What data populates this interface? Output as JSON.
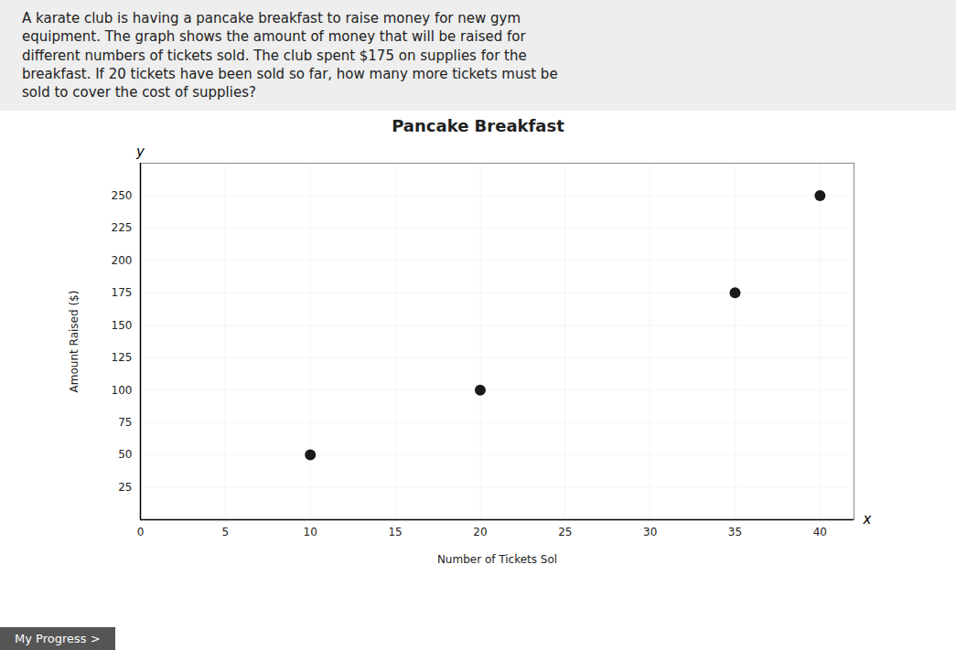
{
  "chart_data": {
    "type": "scatter",
    "title": "Pancake Breakfast",
    "xlabel": "Number of Tickets Sol",
    "ylabel": "Amount Raised ($)",
    "x": [
      10,
      20,
      35,
      40
    ],
    "values": [
      50,
      100,
      175,
      250
    ],
    "color": "#1a1a1a",
    "xlim": [
      0,
      42
    ],
    "ylim": [
      0,
      275
    ],
    "xticks": [
      0,
      5,
      10,
      15,
      20,
      25,
      30,
      35,
      40
    ],
    "yticks": [
      25,
      50,
      75,
      100,
      125,
      150,
      175,
      200,
      225,
      250
    ],
    "grid": true,
    "problem_text": [
      "A karate club is having a pancake breakfast to raise money for new gym",
      "equipment. The graph shows the amount of money that will be raised for",
      "different numbers of tickets sold. The club spent $175 on supplies for the",
      "breakfast. If 20 tickets have been sold so far, how many more tickets must be",
      "sold to cover the cost of supplies?"
    ],
    "axis_end_labels": {
      "x": "x",
      "y": "y"
    },
    "footer": "My Progress  >"
  }
}
